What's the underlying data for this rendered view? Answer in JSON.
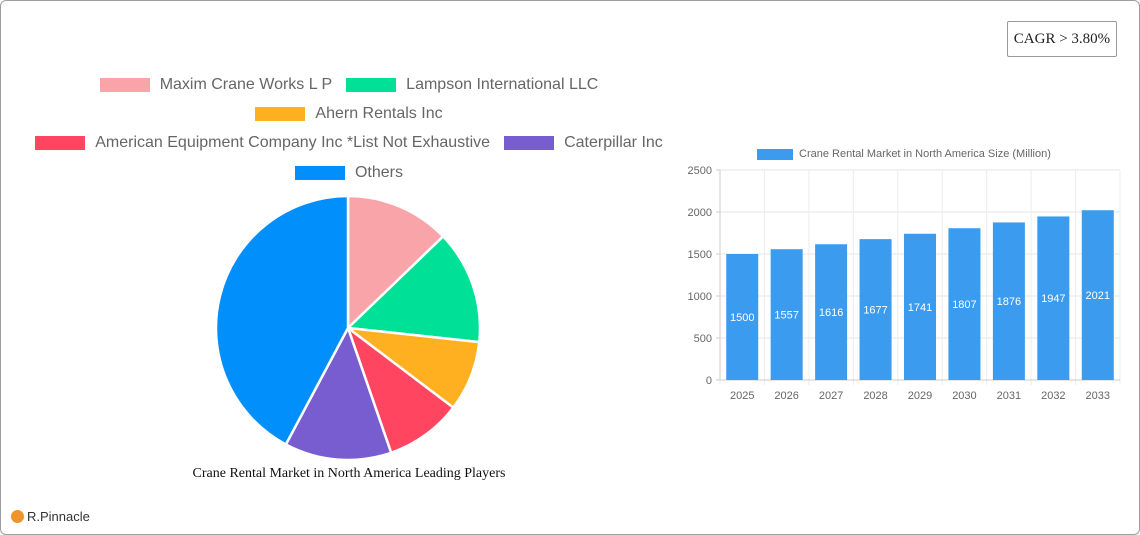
{
  "cagr_badge": "CAGR > 3.80%",
  "brand": "R.Pinnacle",
  "pie_legend": [
    {
      "label": "Maxim Crane Works L P",
      "color": "#f8a4a8"
    },
    {
      "label": "Lampson International LLC",
      "color": "#00e096"
    },
    {
      "label": "Ahern Rentals Inc",
      "color": "#ffb020"
    },
    {
      "label": "American Equipment Company Inc *List Not Exhaustive",
      "color": "#ff4560"
    },
    {
      "label": "Caterpillar Inc",
      "color": "#775dd0"
    },
    {
      "label": "Others",
      "color": "#008ffb"
    }
  ],
  "bar_legend": "Crane Rental Market in North America Size (Million)",
  "chart_data": [
    {
      "type": "pie",
      "title": "Crane Rental Market in North America Leading Players",
      "categories": [
        "Maxim Crane Works L P",
        "Lampson International LLC",
        "Ahern Rentals Inc",
        "American Equipment Company Inc *List Not Exhaustive",
        "Caterpillar Inc",
        "Others"
      ],
      "values": [
        12.8,
        13.9,
        8.6,
        9.4,
        13.1,
        42.2
      ],
      "colors": [
        "#f8a4a8",
        "#00e096",
        "#ffb020",
        "#ff4560",
        "#775dd0",
        "#008ffb"
      ],
      "legend_position": "top"
    },
    {
      "type": "bar",
      "title": "",
      "legend": [
        "Crane Rental Market in North America Size (Million)"
      ],
      "categories": [
        "2025",
        "2026",
        "2027",
        "2028",
        "2029",
        "2030",
        "2031",
        "2032",
        "2033"
      ],
      "values": [
        1500,
        1557,
        1616,
        1677,
        1741,
        1807,
        1876,
        1947,
        2021
      ],
      "xlabel": "",
      "ylabel": "",
      "ylim": [
        0,
        2500
      ],
      "yticks": [
        0,
        500,
        1000,
        1500,
        2000,
        2500
      ],
      "grid": true,
      "color": "#3a9bef",
      "data_labels": true
    }
  ]
}
